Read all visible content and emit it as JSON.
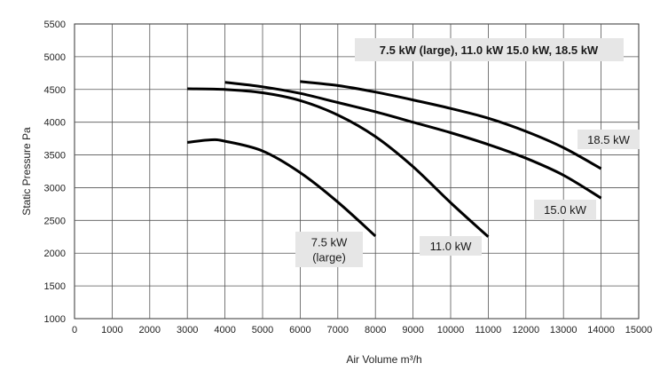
{
  "chart_data": {
    "type": "line",
    "xlabel": "Air Volume  m³/h",
    "ylabel": "Static Pressure Pa",
    "xlim": [
      0,
      15000
    ],
    "ylim": [
      1000,
      5500
    ],
    "grid": true,
    "x_ticks": [
      0,
      1000,
      2000,
      3000,
      4000,
      5000,
      6000,
      7000,
      8000,
      9000,
      10000,
      11000,
      12000,
      13000,
      14000,
      15000
    ],
    "y_ticks": [
      1000,
      1500,
      2000,
      2500,
      3000,
      3500,
      4000,
      4500,
      5000,
      5500
    ],
    "legend_box": "7.5 kW (large), 11.0 kW 15.0 kW, 18.5 kW",
    "series": [
      {
        "name": "7.5 kW (large)",
        "label_lines": [
          "7.5 kW",
          "(large)"
        ],
        "x": [
          3000,
          3600,
          4000,
          5000,
          6000,
          7000,
          8000
        ],
        "y": [
          3690,
          3730,
          3710,
          3560,
          3230,
          2780,
          2260
        ]
      },
      {
        "name": "11.0 kW",
        "label_lines": [
          "11.0 kW"
        ],
        "x": [
          3000,
          4000,
          5000,
          6000,
          7000,
          8000,
          9000,
          10000,
          11000
        ],
        "y": [
          4510,
          4500,
          4450,
          4330,
          4110,
          3780,
          3320,
          2770,
          2250
        ]
      },
      {
        "name": "15.0 kW",
        "label_lines": [
          "15.0 kW"
        ],
        "x": [
          4000,
          5000,
          6000,
          7000,
          8000,
          9000,
          10000,
          11000,
          12000,
          13000,
          14000
        ],
        "y": [
          4610,
          4540,
          4440,
          4300,
          4160,
          4000,
          3840,
          3660,
          3450,
          3190,
          2840
        ]
      },
      {
        "name": "18.5 kW",
        "label_lines": [
          "18.5 kW"
        ],
        "x": [
          6000,
          7000,
          8000,
          9000,
          10000,
          11000,
          12000,
          13000,
          14000
        ],
        "y": [
          4620,
          4560,
          4460,
          4340,
          4210,
          4060,
          3860,
          3610,
          3290
        ]
      }
    ]
  }
}
